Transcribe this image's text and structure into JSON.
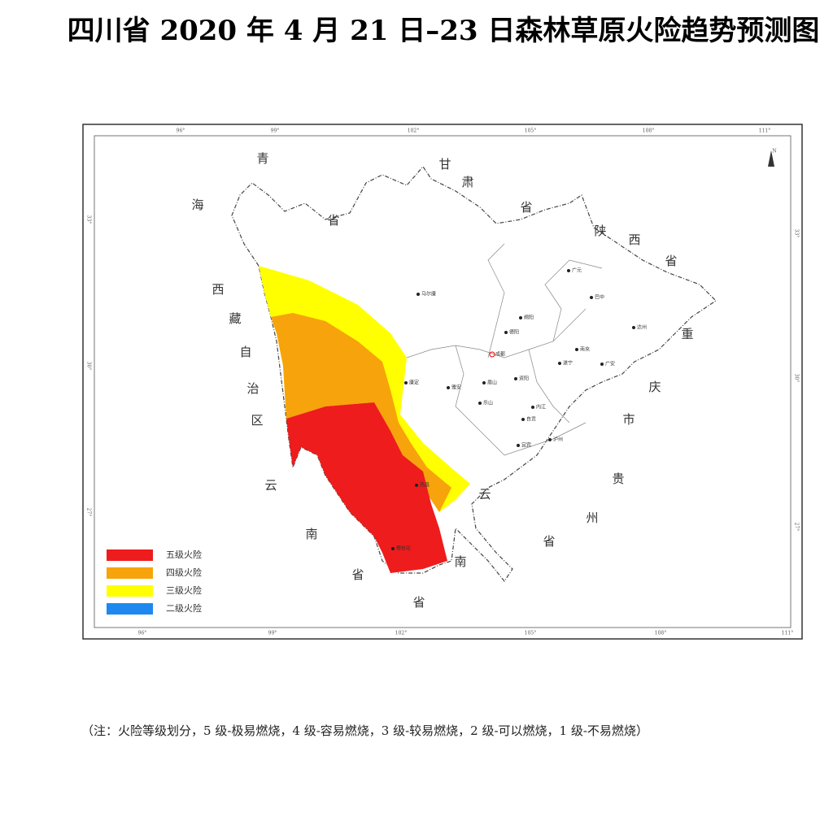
{
  "title": "四川省 2020 年 4 月 21 日–23 日森林草原火险趋势预测图",
  "map": {
    "north": "N",
    "lon_top": [
      "96°",
      "99°",
      "102°",
      "105°",
      "108°",
      "111°"
    ],
    "lon_bottom": [
      "96°",
      "99°",
      "102°",
      "105°",
      "108°",
      "111°"
    ],
    "lat_left": [
      "33°",
      "30°",
      "27°"
    ],
    "lat_right": [
      "33°",
      "30°",
      "27°"
    ],
    "provinces": [
      [
        "青",
        "海",
        "省"
      ],
      [
        "甘",
        "肃",
        "省"
      ],
      [
        "陕",
        "西",
        "省"
      ],
      [
        "重",
        "庆",
        "市"
      ],
      [
        "贵",
        "州",
        "省"
      ],
      [
        "云",
        "南",
        "省"
      ],
      [
        "西",
        "藏",
        "自",
        "治",
        "区"
      ],
      [
        "云",
        "南",
        "省"
      ]
    ],
    "cities": [
      "马尔康",
      "绵阳",
      "德阳",
      "成都",
      "广元",
      "巴中",
      "达州",
      "南充",
      "广安",
      "遂宁",
      "雅安",
      "眉山",
      "资阳",
      "乐山",
      "内江",
      "自贡",
      "泸州",
      "宜宾",
      "康定",
      "西昌",
      "攀枝花"
    ]
  },
  "legend": [
    {
      "label": "五级火险",
      "color": "#ee1c1c"
    },
    {
      "label": "四级火险",
      "color": "#f7a30c"
    },
    {
      "label": "三级火险",
      "color": "#ffff00"
    },
    {
      "label": "二级火险",
      "color": "#1e88f0"
    }
  ],
  "note": "（注：火险等级划分，5 级-极易燃烧，4 级-容易燃烧，3 级-较易燃烧，2 级-可以燃烧，1 级-不易燃烧）"
}
